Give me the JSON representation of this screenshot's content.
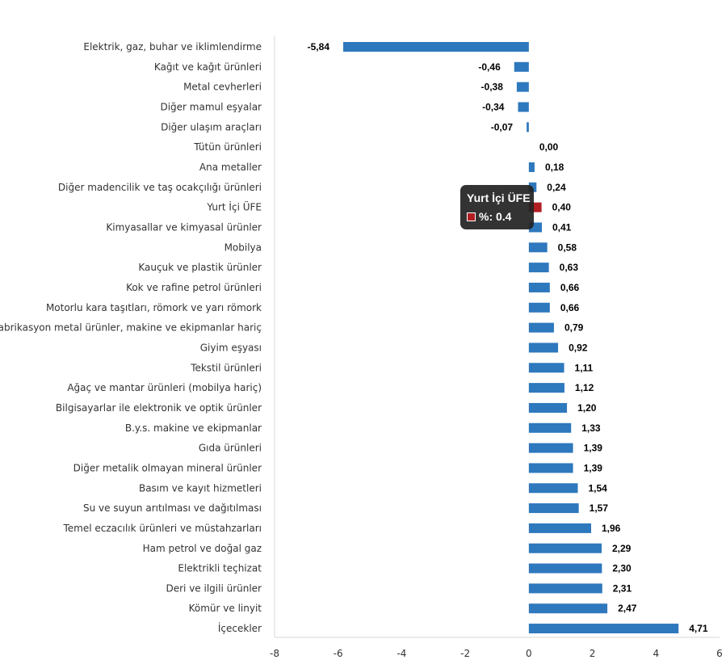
{
  "chart_data": {
    "type": "bar",
    "orientation": "horizontal",
    "categories": [
      "Elektrik, gaz, buhar ve iklimlendirme",
      "Kağıt ve kağıt ürünleri",
      "Metal cevherleri",
      "Diğer mamul eşyalar",
      "Diğer ulaşım araçları",
      "Tütün ürünleri",
      "Ana metaller",
      "Diğer madencilik ve taş ocakçılığı ürünleri",
      "Yurt İçi ÜFE",
      "Kimyasallar ve kimyasal ürünler",
      "Mobilya",
      "Kauçuk ve plastik ürünler",
      "Kok ve rafine petrol ürünleri",
      "Motorlu kara taşıtları, römork ve yarı römork",
      "Fabrikasyon metal ürünler, makine ve ekipmanlar hariç",
      "Giyim eşyası",
      "Tekstil ürünleri",
      "Ağaç ve mantar ürünleri (mobilya hariç)",
      "Bilgisayarlar ile elektronik ve optik ürünler",
      "B.y.s. makine ve ekipmanlar",
      "Gıda ürünleri",
      "Diğer metalik olmayan mineral ürünler",
      "Basım ve kayıt hizmetleri",
      "Su ve suyun arıtılması ve dağıtılması",
      "Temel eczacılık ürünleri ve müstahzarları",
      "Ham petrol ve doğal gaz",
      "Elektrikli teçhizat",
      "Deri ve ilgili ürünler",
      "Kömür ve linyit",
      "İçecekler"
    ],
    "values": [
      -5.84,
      -0.46,
      -0.38,
      -0.34,
      -0.07,
      0.0,
      0.18,
      0.24,
      0.4,
      0.41,
      0.58,
      0.63,
      0.66,
      0.66,
      0.79,
      0.92,
      1.11,
      1.12,
      1.2,
      1.33,
      1.39,
      1.39,
      1.54,
      1.57,
      1.96,
      2.29,
      2.3,
      2.31,
      2.47,
      4.71
    ],
    "value_labels": [
      "-5,84",
      "-0,46",
      "-0,38",
      "-0,34",
      "-0,07",
      "0,00",
      "0,18",
      "0,24",
      "0,40",
      "0,41",
      "0,58",
      "0,63",
      "0,66",
      "0,66",
      "0,79",
      "0,92",
      "1,11",
      "1,12",
      "1,20",
      "1,33",
      "1,39",
      "1,39",
      "1,54",
      "1,57",
      "1,96",
      "2,29",
      "2,30",
      "2,31",
      "2,47",
      "4,71"
    ],
    "xlim": [
      -8,
      6
    ],
    "xticks": [
      -8,
      -6,
      -4,
      -2,
      0,
      2,
      4,
      6
    ],
    "highlight_index": 8,
    "grid": false,
    "legend": "none",
    "colors": {
      "bar": "#2e78bd",
      "highlight": "#b11e22"
    }
  },
  "tooltip": {
    "title": "Yurt İçi ÜFE",
    "value_text": "%: 0.4",
    "swatch_color": "#b11e22"
  }
}
